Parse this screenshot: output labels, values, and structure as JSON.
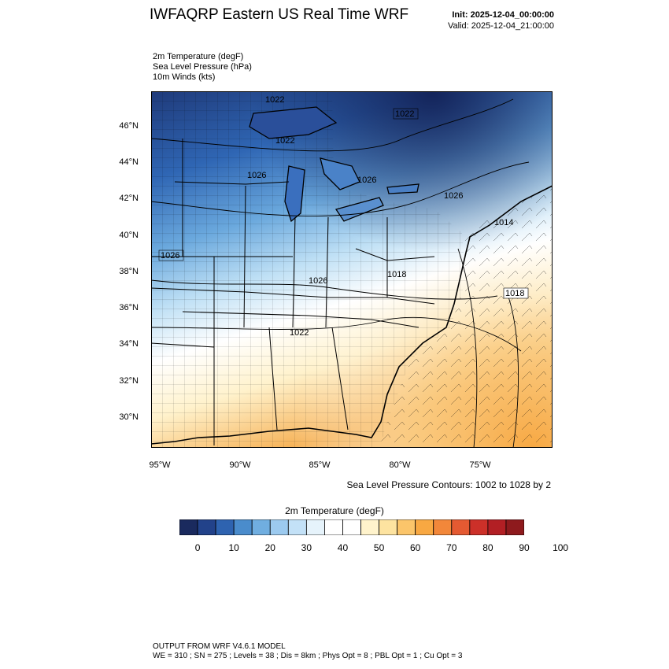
{
  "header": {
    "title": "IWFAQRP Eastern US Real Time WRF",
    "init": "Init: 2025-12-04_00:00:00",
    "valid": "Valid: 2025-12-04_21:00:00"
  },
  "fields": [
    "2m Temperature   (degF)",
    "Sea Level Pressure   (hPa)",
    "10m Winds   (kts)"
  ],
  "map": {
    "lat_labels": [
      "46°N",
      "44°N",
      "42°N",
      "40°N",
      "38°N",
      "36°N",
      "34°N",
      "32°N",
      "30°N"
    ],
    "lon_labels": [
      "95°W",
      "90°W",
      "85°W",
      "80°W",
      "75°W"
    ],
    "pressure_labels": [
      "1022",
      "1022",
      "1022",
      "1026",
      "1026",
      "1026",
      "1026",
      "1026",
      "1022",
      "1018",
      "1014",
      "1018"
    ],
    "slp_note": "Sea Level Pressure Contours: 1002 to 1028 by 2"
  },
  "colorbar": {
    "title": "2m Temperature  (degF)",
    "ticks": [
      "0",
      "10",
      "20",
      "30",
      "40",
      "50",
      "60",
      "70",
      "80",
      "90",
      "100"
    ],
    "colors": [
      "#1a2a5e",
      "#22428a",
      "#2e63b0",
      "#4a8ccc",
      "#70aee0",
      "#9ccaef",
      "#c3e1f7",
      "#e6f3fb",
      "#ffffff",
      "#ffffff",
      "#fff3cc",
      "#fde3a0",
      "#fbc56a",
      "#f8a842",
      "#f2873a",
      "#e45a32",
      "#cc3029",
      "#b21f24",
      "#8e1a1d"
    ],
    "temperature_colors": {
      "cold": "#1a2a5e",
      "cool": "#70aee0",
      "neutral": "#ffffff",
      "warm": "#fbc56a"
    }
  },
  "footer": {
    "line1": "OUTPUT FROM WRF V4.6.1 MODEL",
    "line2": "WE = 310 ; SN = 275 ; Levels = 38 ; Dis = 8km ; Phys Opt = 8 ; PBL Opt = 1 ; Cu Opt = 3"
  }
}
